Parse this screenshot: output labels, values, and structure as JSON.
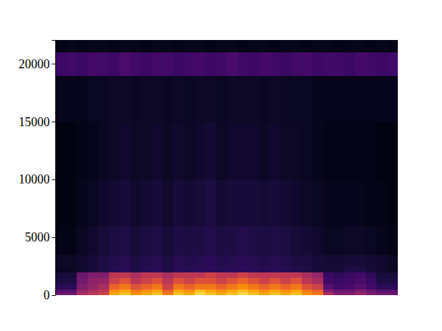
{
  "chart_data": {
    "type": "heatmap",
    "color": "inferno",
    "tick_labels": "y",
    "ylim": [
      0,
      22050
    ],
    "yticks": [
      0,
      5000,
      10000,
      15000,
      20000
    ],
    "zlim": [
      0,
      1
    ],
    "y_bins": [
      0,
      250,
      500,
      1000,
      1500,
      2000,
      2500,
      3500,
      6000,
      10000,
      15000,
      19000,
      21000,
      22050
    ],
    "cells": [
      [
        0.3,
        0.3,
        0.45,
        0.5,
        0.55,
        0.8,
        0.85,
        0.75,
        0.8,
        0.85,
        0.7,
        0.85,
        0.8,
        0.9,
        0.85,
        0.8,
        0.85,
        0.9,
        0.85,
        0.8,
        0.85,
        0.8,
        0.85,
        0.75,
        0.7,
        0.45,
        0.35,
        0.35,
        0.4,
        0.35,
        0.3,
        0.3
      ],
      [
        0.25,
        0.25,
        0.4,
        0.45,
        0.5,
        0.75,
        0.8,
        0.7,
        0.75,
        0.8,
        0.65,
        0.8,
        0.75,
        0.85,
        0.8,
        0.75,
        0.8,
        0.85,
        0.8,
        0.75,
        0.8,
        0.75,
        0.8,
        0.7,
        0.65,
        0.35,
        0.3,
        0.3,
        0.35,
        0.3,
        0.25,
        0.25
      ],
      [
        0.15,
        0.15,
        0.35,
        0.4,
        0.45,
        0.65,
        0.7,
        0.6,
        0.65,
        0.7,
        0.55,
        0.7,
        0.65,
        0.7,
        0.7,
        0.65,
        0.7,
        0.75,
        0.7,
        0.65,
        0.7,
        0.65,
        0.7,
        0.6,
        0.55,
        0.25,
        0.2,
        0.22,
        0.25,
        0.2,
        0.15,
        0.15
      ],
      [
        0.12,
        0.12,
        0.32,
        0.38,
        0.4,
        0.55,
        0.6,
        0.5,
        0.55,
        0.6,
        0.5,
        0.6,
        0.55,
        0.6,
        0.6,
        0.55,
        0.6,
        0.65,
        0.6,
        0.55,
        0.6,
        0.55,
        0.6,
        0.5,
        0.45,
        0.2,
        0.18,
        0.2,
        0.22,
        0.18,
        0.12,
        0.12
      ],
      [
        0.1,
        0.1,
        0.3,
        0.35,
        0.35,
        0.5,
        0.5,
        0.45,
        0.5,
        0.5,
        0.45,
        0.5,
        0.5,
        0.5,
        0.55,
        0.5,
        0.5,
        0.55,
        0.5,
        0.5,
        0.5,
        0.5,
        0.5,
        0.45,
        0.4,
        0.18,
        0.15,
        0.18,
        0.2,
        0.15,
        0.1,
        0.1
      ],
      [
        0.06,
        0.06,
        0.08,
        0.1,
        0.12,
        0.14,
        0.15,
        0.12,
        0.14,
        0.15,
        0.12,
        0.15,
        0.14,
        0.15,
        0.16,
        0.14,
        0.15,
        0.16,
        0.15,
        0.14,
        0.15,
        0.14,
        0.13,
        0.12,
        0.1,
        0.1,
        0.1,
        0.12,
        0.12,
        0.1,
        0.08,
        0.06
      ],
      [
        0.07,
        0.07,
        0.08,
        0.1,
        0.12,
        0.13,
        0.14,
        0.12,
        0.13,
        0.14,
        0.12,
        0.14,
        0.13,
        0.14,
        0.15,
        0.13,
        0.14,
        0.15,
        0.14,
        0.13,
        0.14,
        0.13,
        0.12,
        0.11,
        0.1,
        0.09,
        0.09,
        0.1,
        0.1,
        0.09,
        0.08,
        0.07
      ],
      [
        0.04,
        0.04,
        0.06,
        0.08,
        0.1,
        0.11,
        0.12,
        0.1,
        0.11,
        0.12,
        0.1,
        0.12,
        0.11,
        0.12,
        0.13,
        0.11,
        0.12,
        0.13,
        0.12,
        0.11,
        0.12,
        0.11,
        0.1,
        0.09,
        0.08,
        0.06,
        0.06,
        0.07,
        0.07,
        0.06,
        0.05,
        0.04
      ],
      [
        0.03,
        0.03,
        0.05,
        0.06,
        0.08,
        0.09,
        0.1,
        0.08,
        0.09,
        0.1,
        0.08,
        0.1,
        0.09,
        0.1,
        0.11,
        0.09,
        0.1,
        0.1,
        0.1,
        0.09,
        0.1,
        0.09,
        0.08,
        0.07,
        0.06,
        0.05,
        0.05,
        0.05,
        0.05,
        0.04,
        0.04,
        0.03
      ],
      [
        0.03,
        0.03,
        0.04,
        0.05,
        0.06,
        0.07,
        0.08,
        0.07,
        0.07,
        0.08,
        0.07,
        0.08,
        0.07,
        0.08,
        0.09,
        0.07,
        0.08,
        0.08,
        0.08,
        0.07,
        0.08,
        0.07,
        0.07,
        0.06,
        0.05,
        0.04,
        0.04,
        0.04,
        0.04,
        0.04,
        0.03,
        0.03
      ],
      [
        0.05,
        0.05,
        0.05,
        0.06,
        0.06,
        0.07,
        0.07,
        0.06,
        0.07,
        0.07,
        0.06,
        0.07,
        0.06,
        0.07,
        0.07,
        0.06,
        0.07,
        0.07,
        0.07,
        0.06,
        0.07,
        0.06,
        0.06,
        0.06,
        0.05,
        0.05,
        0.05,
        0.05,
        0.05,
        0.05,
        0.05,
        0.05
      ],
      [
        0.19,
        0.2,
        0.18,
        0.21,
        0.2,
        0.19,
        0.22,
        0.2,
        0.19,
        0.21,
        0.2,
        0.18,
        0.2,
        0.21,
        0.19,
        0.2,
        0.22,
        0.2,
        0.19,
        0.21,
        0.2,
        0.18,
        0.2,
        0.21,
        0.19,
        0.2,
        0.2,
        0.18,
        0.21,
        0.2,
        0.19,
        0.2
      ],
      [
        0.04,
        0.05,
        0.04,
        0.05,
        0.05,
        0.04,
        0.05,
        0.05,
        0.04,
        0.05,
        0.05,
        0.04,
        0.05,
        0.05,
        0.04,
        0.05,
        0.05,
        0.04,
        0.05,
        0.05,
        0.04,
        0.05,
        0.05,
        0.04,
        0.05,
        0.05,
        0.04,
        0.05,
        0.05,
        0.04,
        0.05,
        0.04
      ]
    ]
  }
}
